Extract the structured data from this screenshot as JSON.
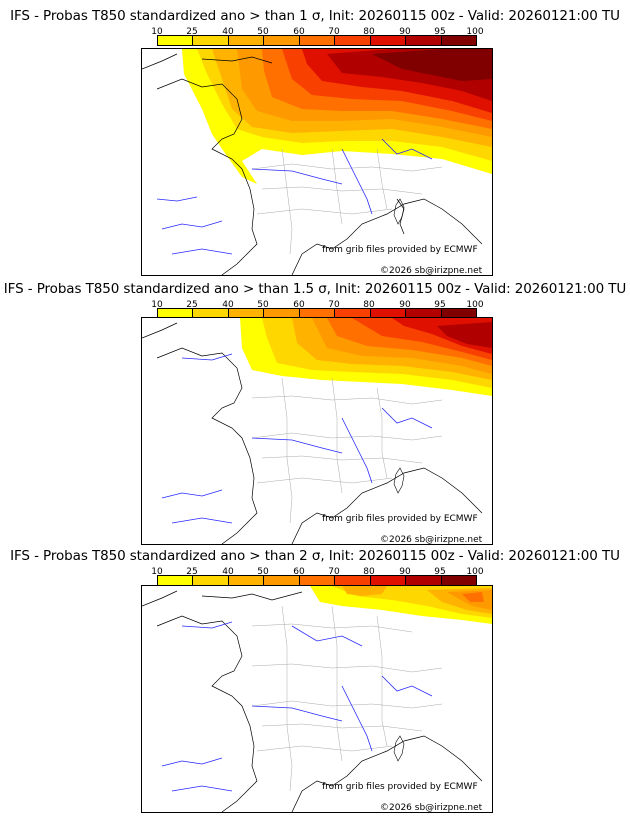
{
  "scale": {
    "labels": [
      "10",
      "25",
      "40",
      "50",
      "60",
      "70",
      "80",
      "90",
      "95",
      "100"
    ],
    "colors": [
      "#ffff00",
      "#ffd700",
      "#ffb300",
      "#ff9900",
      "#ff7000",
      "#f84000",
      "#e01000",
      "#b00000",
      "#800000"
    ]
  },
  "panels": [
    {
      "title": "IFS - Probas T850  standardized ano > than 1 σ, Init: 20260115 00z - Valid: 20260121:00 TU"
    },
    {
      "title": "IFS - Probas T850  standardized ano > than 1.5 σ, Init: 20260115 00z - Valid: 20260121:00 TU"
    },
    {
      "title": "IFS - Probas T850  standardized ano > than 2 σ, Init: 20260115 00z - Valid: 20260121:00 TU"
    }
  ],
  "credits": {
    "source": "from grib files provided by ECMWF",
    "copyright": "©2026 sb@irizpne.net"
  }
}
